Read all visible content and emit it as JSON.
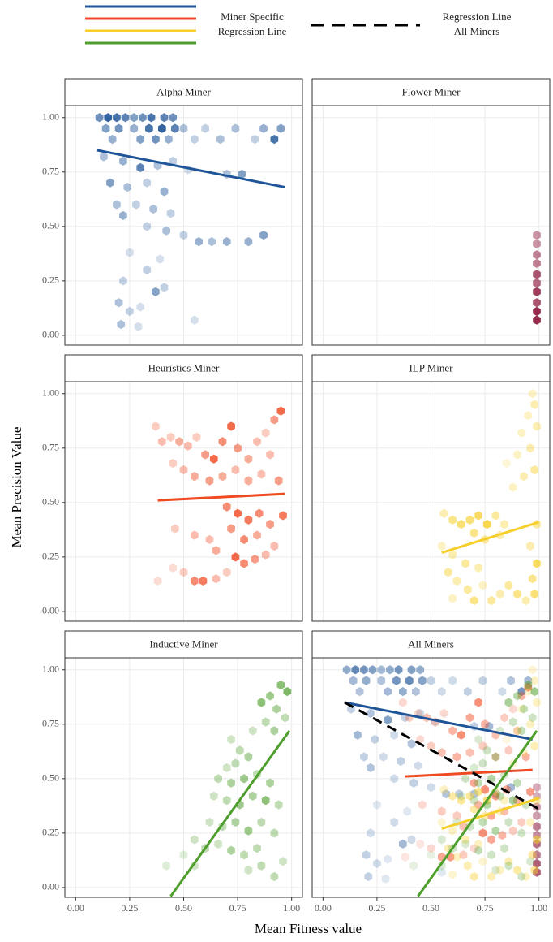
{
  "chart_data": {
    "type": "hexbin-facets",
    "x_label": "Mean Fitness value",
    "y_label": "Mean Precision Value",
    "legend": {
      "miner_line": [
        "Miner Specific",
        "Regression Line"
      ],
      "all_line": [
        "Regression Line",
        "All Miners"
      ]
    },
    "xlim": [
      -0.05,
      1.05
    ],
    "ylim": [
      -0.045,
      1.055
    ],
    "xticks": [
      {
        "value": 0,
        "label": "0.00"
      },
      {
        "value": 0.25,
        "label": "0.25"
      },
      {
        "value": 0.5,
        "label": "0.50"
      },
      {
        "value": 0.75,
        "label": "0.75"
      },
      {
        "value": 1,
        "label": "1.00"
      }
    ],
    "yticks": [
      {
        "value": 0,
        "label": "0.00"
      },
      {
        "value": 0.25,
        "label": "0.25"
      },
      {
        "value": 0.5,
        "label": "0.50"
      },
      {
        "value": 0.75,
        "label": "0.75"
      },
      {
        "value": 1,
        "label": "1.00"
      }
    ],
    "grid": true,
    "panels": [
      {
        "title": "Alpha Miner",
        "color": "#1f5598",
        "hexes": {
          "x": [
            0.11,
            0.15,
            0.19,
            0.23,
            0.27,
            0.31,
            0.35,
            0.41,
            0.45,
            0.14,
            0.2,
            0.27,
            0.34,
            0.4,
            0.46,
            0.5,
            0.6,
            0.74,
            0.87,
            0.95,
            0.17,
            0.3,
            0.37,
            0.43,
            0.55,
            0.67,
            0.83,
            0.92,
            0.13,
            0.22,
            0.3,
            0.38,
            0.45,
            0.52,
            0.7,
            0.77,
            0.16,
            0.24,
            0.33,
            0.41,
            0.19,
            0.28,
            0.36,
            0.44,
            0.22,
            0.33,
            0.42,
            0.5,
            0.57,
            0.63,
            0.7,
            0.8,
            0.87,
            0.25,
            0.33,
            0.39,
            0.22,
            0.37,
            0.41,
            0.2,
            0.25,
            0.3,
            0.21,
            0.29,
            0.55
          ],
          "y": [
            1.0,
            1.0,
            1.0,
            1.0,
            1.0,
            1.0,
            1.0,
            1.0,
            1.0,
            0.95,
            0.95,
            0.95,
            0.95,
            0.95,
            0.95,
            0.95,
            0.95,
            0.95,
            0.95,
            0.95,
            0.9,
            0.9,
            0.9,
            0.9,
            0.9,
            0.9,
            0.9,
            0.9,
            0.82,
            0.8,
            0.77,
            0.78,
            0.8,
            0.76,
            0.74,
            0.74,
            0.7,
            0.68,
            0.7,
            0.66,
            0.6,
            0.6,
            0.58,
            0.56,
            0.55,
            0.5,
            0.48,
            0.46,
            0.43,
            0.43,
            0.43,
            0.43,
            0.46,
            0.38,
            0.3,
            0.35,
            0.25,
            0.2,
            0.22,
            0.15,
            0.11,
            0.13,
            0.05,
            0.04,
            0.07
          ],
          "count": [
            6,
            9,
            8,
            7,
            5,
            6,
            8,
            7,
            6,
            5,
            6,
            4,
            8,
            9,
            7,
            3,
            2,
            3,
            4,
            5,
            4,
            5,
            6,
            4,
            2,
            3,
            2,
            8,
            3,
            4,
            7,
            3,
            2,
            1,
            3,
            5,
            5,
            3,
            2,
            4,
            3,
            2,
            3,
            2,
            4,
            2,
            3,
            2,
            4,
            3,
            4,
            4,
            5,
            1,
            2,
            1,
            2,
            5,
            2,
            3,
            2,
            1,
            3,
            1,
            1
          ]
        },
        "line": {
          "x": [
            0.1,
            0.97
          ],
          "y": [
            0.85,
            0.68
          ]
        }
      },
      {
        "title": "Flower Miner",
        "color": "#8b1538",
        "hexes": {
          "x": [
            0.99,
            0.99,
            0.99,
            0.99,
            0.99,
            0.99,
            0.99,
            0.99,
            0.99,
            0.99
          ],
          "y": [
            0.07,
            0.11,
            0.15,
            0.2,
            0.24,
            0.28,
            0.33,
            0.37,
            0.42,
            0.46
          ],
          "count": [
            9,
            9,
            7,
            8,
            6,
            7,
            5,
            5,
            4,
            4
          ]
        }
      },
      {
        "title": "Heuristics Miner",
        "color": "#f04a22",
        "hexes": {
          "x": [
            0.37,
            0.4,
            0.44,
            0.48,
            0.52,
            0.56,
            0.6,
            0.64,
            0.68,
            0.72,
            0.75,
            0.8,
            0.84,
            0.88,
            0.92,
            0.95,
            0.9,
            0.45,
            0.5,
            0.55,
            0.62,
            0.68,
            0.74,
            0.8,
            0.86,
            0.94,
            0.7,
            0.75,
            0.8,
            0.85,
            0.9,
            0.96,
            0.72,
            0.78,
            0.84,
            0.92,
            0.46,
            0.55,
            0.62,
            0.65,
            0.74,
            0.78,
            0.83,
            0.88,
            0.45,
            0.5,
            0.55,
            0.59,
            0.65,
            0.7,
            0.38
          ],
          "y": [
            0.85,
            0.78,
            0.8,
            0.78,
            0.76,
            0.8,
            0.72,
            0.7,
            0.78,
            0.85,
            0.75,
            0.7,
            0.78,
            0.82,
            0.88,
            0.92,
            0.72,
            0.68,
            0.65,
            0.62,
            0.6,
            0.62,
            0.65,
            0.6,
            0.63,
            0.6,
            0.48,
            0.45,
            0.42,
            0.45,
            0.4,
            0.44,
            0.38,
            0.33,
            0.35,
            0.3,
            0.38,
            0.35,
            0.33,
            0.28,
            0.25,
            0.22,
            0.24,
            0.26,
            0.2,
            0.18,
            0.14,
            0.14,
            0.15,
            0.18,
            0.14
          ],
          "count": [
            2,
            3,
            2,
            4,
            3,
            2,
            5,
            8,
            6,
            8,
            5,
            4,
            3,
            2,
            5,
            8,
            3,
            2,
            3,
            4,
            5,
            4,
            3,
            4,
            3,
            5,
            6,
            8,
            7,
            6,
            5,
            7,
            5,
            6,
            4,
            3,
            2,
            3,
            3,
            4,
            8,
            6,
            5,
            3,
            1,
            2,
            6,
            7,
            3,
            2,
            1
          ]
        },
        "line": {
          "x": [
            0.38,
            0.97
          ],
          "y": [
            0.51,
            0.54
          ]
        }
      },
      {
        "title": "ILP Miner",
        "color": "#f6cf2a",
        "hexes": {
          "x": [
            0.97,
            0.98,
            0.95,
            0.99,
            0.92,
            0.96,
            0.9,
            0.85,
            0.98,
            0.93,
            0.88,
            0.56,
            0.6,
            0.64,
            0.68,
            0.72,
            0.76,
            0.8,
            0.84,
            0.7,
            0.75,
            0.82,
            0.55,
            0.6,
            0.66,
            0.72,
            0.58,
            0.62,
            0.67,
            0.7,
            0.78,
            0.82,
            0.86,
            0.9,
            0.94,
            0.98,
            0.97,
            0.99,
            0.96,
            0.99,
            0.6,
            0.74
          ],
          "y": [
            1.0,
            0.95,
            0.9,
            0.85,
            0.82,
            0.75,
            0.72,
            0.68,
            0.65,
            0.62,
            0.57,
            0.45,
            0.42,
            0.4,
            0.42,
            0.44,
            0.4,
            0.44,
            0.4,
            0.36,
            0.33,
            0.35,
            0.3,
            0.26,
            0.22,
            0.2,
            0.18,
            0.14,
            0.1,
            0.05,
            0.05,
            0.08,
            0.12,
            0.08,
            0.05,
            0.08,
            0.15,
            0.22,
            0.3,
            0.4,
            0.06,
            0.12
          ],
          "count": [
            2,
            3,
            2,
            3,
            2,
            3,
            2,
            1,
            4,
            3,
            2,
            3,
            5,
            6,
            6,
            7,
            8,
            4,
            3,
            5,
            4,
            3,
            2,
            3,
            4,
            3,
            4,
            3,
            4,
            5,
            4,
            3,
            4,
            5,
            3,
            6,
            5,
            7,
            3,
            4,
            2,
            2
          ]
        },
        "line": {
          "x": [
            0.55,
            1.0
          ],
          "y": [
            0.27,
            0.41
          ]
        }
      },
      {
        "title": "Inductive Miner",
        "color": "#4e9e2c",
        "hexes": {
          "x": [
            0.95,
            0.98,
            0.9,
            0.86,
            0.93,
            0.97,
            0.88,
            0.82,
            0.92,
            0.72,
            0.76,
            0.8,
            0.74,
            0.7,
            0.66,
            0.72,
            0.78,
            0.84,
            0.9,
            0.64,
            0.7,
            0.76,
            0.82,
            0.88,
            0.94,
            0.62,
            0.68,
            0.74,
            0.8,
            0.86,
            0.92,
            0.55,
            0.6,
            0.66,
            0.72,
            0.78,
            0.84,
            0.5,
            0.55,
            0.42,
            0.8,
            0.86,
            0.92,
            0.96
          ],
          "y": [
            0.93,
            0.9,
            0.88,
            0.85,
            0.82,
            0.78,
            0.76,
            0.72,
            0.72,
            0.68,
            0.63,
            0.6,
            0.57,
            0.55,
            0.5,
            0.48,
            0.5,
            0.52,
            0.48,
            0.42,
            0.4,
            0.38,
            0.42,
            0.4,
            0.38,
            0.3,
            0.28,
            0.3,
            0.26,
            0.3,
            0.25,
            0.22,
            0.18,
            0.2,
            0.17,
            0.15,
            0.18,
            0.15,
            0.1,
            0.1,
            0.08,
            0.1,
            0.05,
            0.12
          ],
          "count": [
            6,
            7,
            5,
            6,
            4,
            3,
            3,
            2,
            4,
            2,
            3,
            4,
            3,
            2,
            3,
            4,
            5,
            3,
            4,
            2,
            3,
            5,
            4,
            6,
            3,
            2,
            3,
            4,
            5,
            3,
            3,
            2,
            3,
            2,
            4,
            3,
            3,
            1,
            2,
            1,
            2,
            3,
            3,
            2
          ]
        },
        "line": {
          "x": [
            0.44,
            0.99
          ],
          "y": [
            -0.04,
            0.72
          ]
        }
      },
      {
        "title": "All Miners",
        "combined": true,
        "color": "#000000",
        "line": {
          "x": [
            0.1,
            1.0
          ],
          "y": [
            0.85,
            0.36
          ]
        }
      }
    ]
  }
}
